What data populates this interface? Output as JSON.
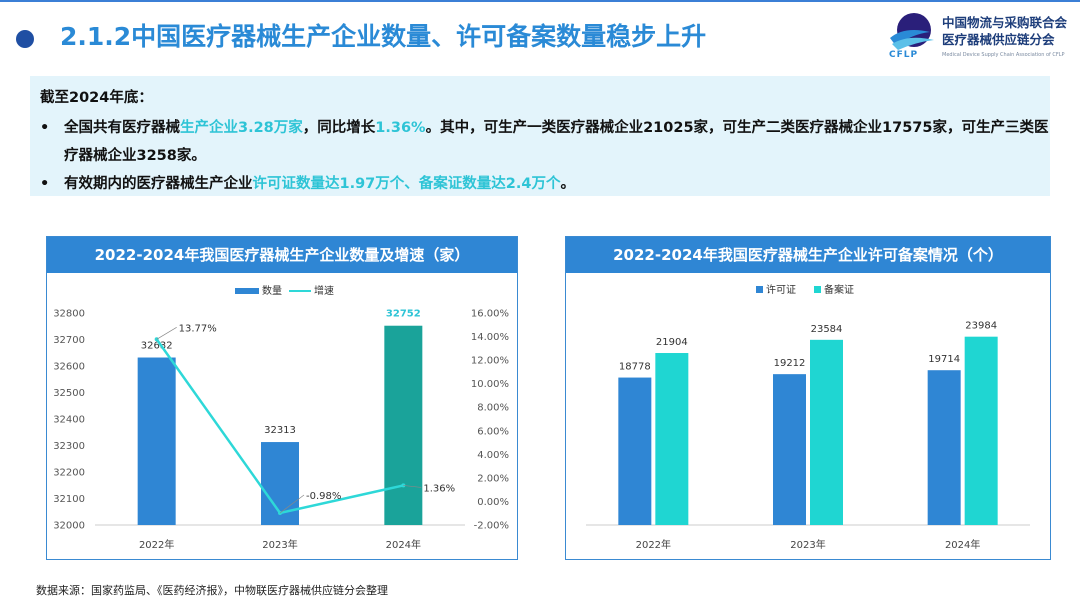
{
  "header": {
    "title": "2.1.2中国医疗器械生产企业数量、许可备案数量稳步上升",
    "org_line1": "中国物流与采购联合会",
    "org_line2": "医疗器械供应链分会",
    "logo_text": "CFLP",
    "org_en": "Medical Device Supply Chain Association of CFLP"
  },
  "summary": {
    "head": "截至2024年底：",
    "bullet_mark": "•",
    "b1_p1": "全国共有医疗器械",
    "b1_h1": "生产企业3.28万家",
    "b1_p2": "，同比增长",
    "b1_h2": "1.36%",
    "b1_p3": "。其中，可生产一类医疗器械企业21025家，可生产二类医疗器械企业17575家，可生产三类医疗器械企业3258家。",
    "b2_p1": "有效期内的医疗器械生产企业",
    "b2_h1": "许可证数量达1.97万个、备案证数量达2.4万个",
    "b2_p2": "。"
  },
  "source": "数据来源：国家药监局、《医药经济报》，中物联医疗器械供应链分会整理",
  "chart_data": [
    {
      "type": "bar",
      "title": "2022-2024年我国医疗器械生产企业数量及增速（家）",
      "categories": [
        "2022年",
        "2023年",
        "2024年"
      ],
      "bar_series": {
        "name": "数量",
        "values": [
          32632,
          32313,
          32752
        ],
        "labels": [
          "32632",
          "32313",
          "32752"
        ]
      },
      "line_series": {
        "name": "增速",
        "values": [
          13.77,
          -0.98,
          1.36
        ],
        "labels": [
          "13.77%",
          "-0.98%",
          "1.36%"
        ]
      },
      "ylim": [
        32000,
        32800
      ],
      "yticks": [
        "32000",
        "32100",
        "32200",
        "32300",
        "32400",
        "32500",
        "32600",
        "32700",
        "32800"
      ],
      "y2lim": [
        -2,
        16
      ],
      "y2ticks": [
        "-2.00%",
        "0.00%",
        "2.00%",
        "4.00%",
        "6.00%",
        "8.00%",
        "10.00%",
        "12.00%",
        "14.00%",
        "16.00%"
      ],
      "legend": "top-center",
      "colors": {
        "bar": "#2f86d4",
        "highlight_bar": "#1aa39a",
        "line": "#2ed8d8",
        "highlight_label": "#2ec4d6"
      }
    },
    {
      "type": "bar",
      "title": "2022-2024年我国医疗器械生产企业许可备案情况（个）",
      "categories": [
        "2022年",
        "2023年",
        "2024年"
      ],
      "series": [
        {
          "name": "许可证",
          "values": [
            18778,
            19212,
            19714
          ],
          "labels": [
            "18778",
            "19212",
            "19714"
          ],
          "color": "#2f86d4"
        },
        {
          "name": "备案证",
          "values": [
            21904,
            23584,
            23984
          ],
          "labels": [
            "21904",
            "23584",
            "23984"
          ],
          "color": "#1fd6d2"
        }
      ],
      "ylim": [
        0,
        27000
      ],
      "legend": "top-center"
    }
  ]
}
